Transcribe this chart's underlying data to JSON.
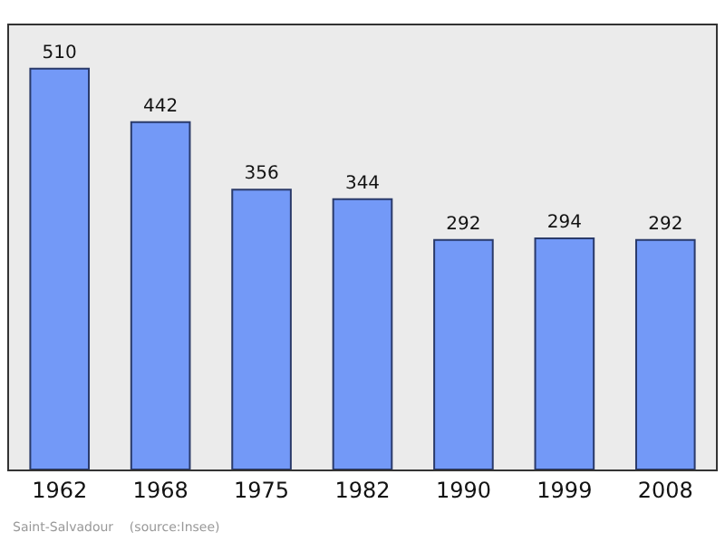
{
  "chart_data": {
    "type": "bar",
    "categories": [
      "1962",
      "1968",
      "1975",
      "1982",
      "1990",
      "1999",
      "2008"
    ],
    "values": [
      510,
      442,
      356,
      344,
      292,
      294,
      292
    ],
    "color": "#7399f7",
    "data_labels": true,
    "ylim": [
      0,
      565
    ],
    "grid": false,
    "legend": false,
    "annotations": [
      "Saint-Salvadour    (source:Insee)"
    ]
  }
}
